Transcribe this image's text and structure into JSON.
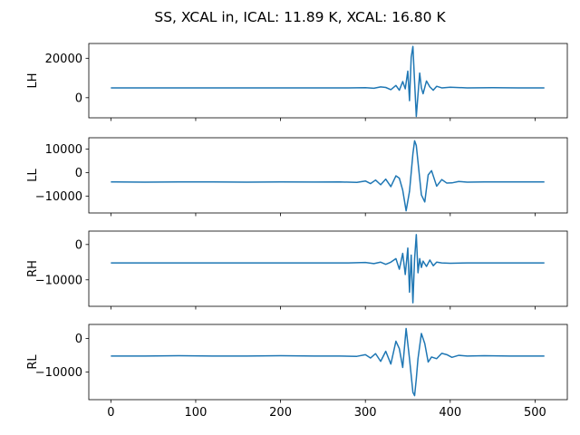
{
  "figure": {
    "title": "SS, XCAL in, ICAL: 11.89 K, XCAL: 16.80 K"
  },
  "chart_data": [
    {
      "type": "line",
      "ylabel": "LH",
      "xlim": [
        -26,
        538
      ],
      "ylim": [
        -10200,
        27500
      ],
      "yticks": [
        0,
        20000
      ],
      "ytick_labels": [
        "0",
        "20000"
      ],
      "xticks": [
        0,
        100,
        200,
        300,
        400,
        500
      ],
      "show_xtick_labels": false,
      "series": [
        {
          "color": "#1f77b4",
          "x": [
            0,
            50,
            100,
            150,
            200,
            250,
            280,
            300,
            310,
            318,
            324,
            330,
            336,
            340,
            344,
            347,
            350,
            352,
            354,
            356,
            358,
            360,
            362,
            364,
            366,
            368,
            372,
            376,
            380,
            384,
            390,
            400,
            420,
            450,
            480,
            511
          ],
          "y": [
            5000,
            5000,
            5000,
            5000,
            5000,
            5000,
            5000,
            5100,
            4800,
            5500,
            5200,
            4100,
            6200,
            3800,
            8200,
            4500,
            13500,
            -1500,
            20500,
            26000,
            8000,
            -9500,
            1500,
            12500,
            5000,
            2000,
            8500,
            5500,
            3800,
            5800,
            5000,
            5300,
            5000,
            5100,
            5000,
            5000
          ]
        }
      ]
    },
    {
      "type": "line",
      "ylabel": "LL",
      "xlim": [
        -26,
        538
      ],
      "ylim": [
        -17200,
        14800
      ],
      "yticks": [
        -10000,
        0,
        10000
      ],
      "ytick_labels": [
        "−10000",
        "0",
        "10000"
      ],
      "xticks": [
        0,
        100,
        200,
        300,
        400,
        500
      ],
      "show_xtick_labels": false,
      "series": [
        {
          "color": "#1f77b4",
          "x": [
            0,
            40,
            80,
            120,
            160,
            200,
            240,
            270,
            290,
            300,
            306,
            312,
            318,
            324,
            330,
            336,
            340,
            344,
            348,
            352,
            356,
            358,
            360,
            362,
            366,
            370,
            374,
            378,
            384,
            390,
            396,
            402,
            410,
            420,
            440,
            470,
            511
          ],
          "y": [
            -4000,
            -4100,
            -4000,
            -4000,
            -4100,
            -4000,
            -4050,
            -4000,
            -4200,
            -3600,
            -4700,
            -3200,
            -5200,
            -2800,
            -6000,
            -1400,
            -2400,
            -7500,
            -16300,
            -8000,
            8000,
            13500,
            11500,
            4500,
            -9500,
            -12500,
            -1000,
            800,
            -5800,
            -3000,
            -4500,
            -4400,
            -3800,
            -4100,
            -4000,
            -4000,
            -4000
          ]
        }
      ]
    },
    {
      "type": "line",
      "ylabel": "RH",
      "xlim": [
        -26,
        538
      ],
      "ylim": [
        -17500,
        3800
      ],
      "yticks": [
        -10000,
        0
      ],
      "ytick_labels": [
        "−10000",
        "0"
      ],
      "xticks": [
        0,
        100,
        200,
        300,
        400,
        500
      ],
      "show_xtick_labels": false,
      "series": [
        {
          "color": "#1f77b4",
          "x": [
            0,
            50,
            100,
            150,
            200,
            250,
            280,
            300,
            310,
            318,
            324,
            330,
            336,
            340,
            344,
            347,
            350,
            352,
            354,
            356,
            358,
            360,
            362,
            364,
            366,
            368,
            372,
            376,
            380,
            384,
            390,
            400,
            420,
            450,
            480,
            511
          ],
          "y": [
            -5200,
            -5200,
            -5200,
            -5200,
            -5200,
            -5200,
            -5200,
            -5100,
            -5400,
            -5000,
            -5600,
            -5000,
            -4000,
            -7000,
            -2500,
            -8500,
            -1000,
            -13500,
            -3000,
            -16500,
            -4000,
            2800,
            -8000,
            -4000,
            -6500,
            -4700,
            -6200,
            -4400,
            -6000,
            -5000,
            -5200,
            -5300,
            -5200,
            -5200,
            -5200,
            -5200
          ]
        }
      ]
    },
    {
      "type": "line",
      "ylabel": "RL",
      "xlim": [
        -26,
        538
      ],
      "ylim": [
        -18200,
        4200
      ],
      "yticks": [
        -10000,
        0
      ],
      "ytick_labels": [
        "−10000",
        "0"
      ],
      "xticks": [
        0,
        100,
        200,
        300,
        400,
        500
      ],
      "show_xtick_labels": true,
      "series": [
        {
          "color": "#1f77b4",
          "x": [
            0,
            40,
            80,
            120,
            160,
            200,
            240,
            270,
            290,
            300,
            306,
            312,
            318,
            324,
            330,
            336,
            340,
            344,
            348,
            352,
            356,
            358,
            360,
            362,
            366,
            370,
            374,
            378,
            384,
            390,
            396,
            402,
            410,
            420,
            440,
            470,
            511
          ],
          "y": [
            -5200,
            -5200,
            -5100,
            -5200,
            -5200,
            -5100,
            -5200,
            -5200,
            -5300,
            -4800,
            -5800,
            -4500,
            -6800,
            -3800,
            -7600,
            -800,
            -3000,
            -8600,
            3000,
            -6000,
            -16000,
            -17000,
            -12000,
            -6000,
            1500,
            -1500,
            -7000,
            -5500,
            -6000,
            -4400,
            -4800,
            -5600,
            -5000,
            -5200,
            -5100,
            -5200,
            -5200
          ]
        }
      ]
    }
  ]
}
